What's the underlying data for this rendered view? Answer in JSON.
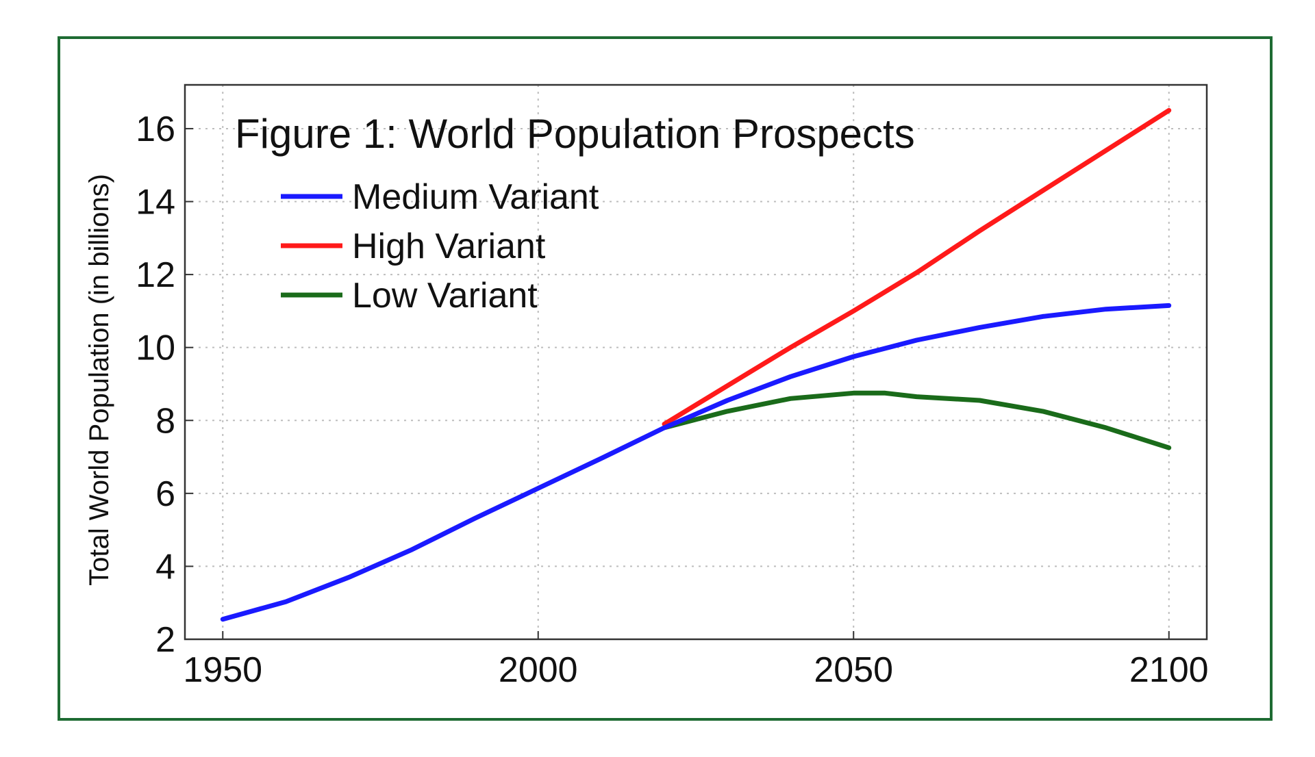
{
  "chart_data": {
    "type": "line",
    "title": "Figure 1: World Population Prospects",
    "xlabel": "",
    "ylabel": "Total World Population (in billions)",
    "xlim": [
      1944,
      2106
    ],
    "ylim": [
      2,
      17.2
    ],
    "xticks": [
      1950,
      2000,
      2050,
      2100
    ],
    "yticks": [
      2,
      4,
      6,
      8,
      10,
      12,
      14,
      16
    ],
    "grid": true,
    "legend_position": "top-left",
    "series": [
      {
        "name": "Medium Variant",
        "color": "#1a1aff",
        "points": [
          [
            1950,
            2.55
          ],
          [
            1960,
            3.03
          ],
          [
            1970,
            3.7
          ],
          [
            1980,
            4.46
          ],
          [
            1990,
            5.32
          ],
          [
            2000,
            6.14
          ],
          [
            2010,
            6.96
          ],
          [
            2020,
            7.8
          ],
          [
            2030,
            8.55
          ],
          [
            2040,
            9.2
          ],
          [
            2050,
            9.75
          ],
          [
            2060,
            10.2
          ],
          [
            2070,
            10.55
          ],
          [
            2080,
            10.85
          ],
          [
            2090,
            11.05
          ],
          [
            2100,
            11.15
          ]
        ]
      },
      {
        "name": "High Variant",
        "color": "#ff1a1a",
        "points": [
          [
            2020,
            7.9
          ],
          [
            2030,
            8.95
          ],
          [
            2040,
            10.0
          ],
          [
            2050,
            11.0
          ],
          [
            2060,
            12.05
          ],
          [
            2070,
            13.2
          ],
          [
            2080,
            14.3
          ],
          [
            2090,
            15.4
          ],
          [
            2100,
            16.5
          ]
        ]
      },
      {
        "name": "Low Variant",
        "color": "#1a6b1a",
        "points": [
          [
            2020,
            7.8
          ],
          [
            2030,
            8.25
          ],
          [
            2040,
            8.6
          ],
          [
            2050,
            8.75
          ],
          [
            2055,
            8.75
          ],
          [
            2060,
            8.65
          ],
          [
            2070,
            8.55
          ],
          [
            2080,
            8.25
          ],
          [
            2090,
            7.8
          ],
          [
            2100,
            7.25
          ]
        ]
      }
    ]
  }
}
